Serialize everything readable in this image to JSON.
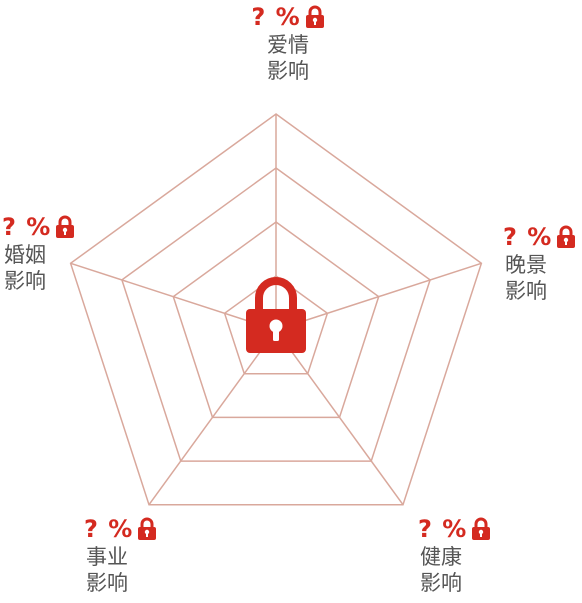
{
  "colors": {
    "accent": "#d42a20",
    "grid": "#d9a89c",
    "label": "#555555"
  },
  "dimensions": [
    {
      "id": "love",
      "score": "? %",
      "label_line1": "爱情",
      "label_line2": "影响",
      "lock_icon": "lock-icon"
    },
    {
      "id": "late-life",
      "score": "? %",
      "label_line1": "晚景",
      "label_line2": "影响",
      "lock_icon": "lock-icon"
    },
    {
      "id": "health",
      "score": "? %",
      "label_line1": "健康",
      "label_line2": "影响",
      "lock_icon": "lock-icon"
    },
    {
      "id": "career",
      "score": "? %",
      "label_line1": "事业",
      "label_line2": "影响",
      "lock_icon": "lock-icon"
    },
    {
      "id": "marriage",
      "score": "? %",
      "label_line1": "婚姻",
      "label_line2": "影响",
      "lock_icon": "lock-icon"
    }
  ],
  "center_icon": "lock-icon",
  "chart_data": {
    "type": "radar",
    "axes": [
      "爱情影响",
      "晚景影响",
      "健康影响",
      "事业影响",
      "婚姻影响"
    ],
    "rings": 4,
    "values": null,
    "locked": true
  }
}
